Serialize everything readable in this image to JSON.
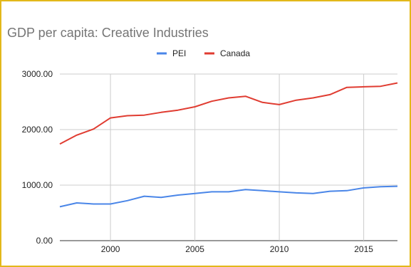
{
  "chart_data": {
    "type": "line",
    "title": "GDP per capita: Creative Industries",
    "xlabel": "",
    "ylabel": "",
    "x": [
      1997,
      1998,
      1999,
      2000,
      2001,
      2002,
      2003,
      2004,
      2005,
      2006,
      2007,
      2008,
      2009,
      2010,
      2011,
      2012,
      2013,
      2014,
      2015,
      2016,
      2017
    ],
    "xlim": [
      1997,
      2017
    ],
    "ylim": [
      0,
      3000
    ],
    "x_ticks": [
      "2000",
      "2005",
      "2010",
      "2015"
    ],
    "y_ticks": [
      "0.00",
      "1000.00",
      "2000.00",
      "3000.00"
    ],
    "grid": true,
    "legend_position": "top",
    "series": [
      {
        "name": "PEI",
        "color": "#4a86e8",
        "values": [
          610,
          680,
          660,
          660,
          720,
          800,
          780,
          820,
          850,
          880,
          880,
          920,
          900,
          880,
          860,
          850,
          890,
          900,
          950,
          970,
          980
        ]
      },
      {
        "name": "Canada",
        "color": "#e03c31",
        "values": [
          1740,
          1900,
          2010,
          2210,
          2250,
          2260,
          2310,
          2350,
          2410,
          2510,
          2570,
          2600,
          2490,
          2450,
          2530,
          2570,
          2630,
          2760,
          2770,
          2780,
          2840
        ]
      }
    ]
  }
}
